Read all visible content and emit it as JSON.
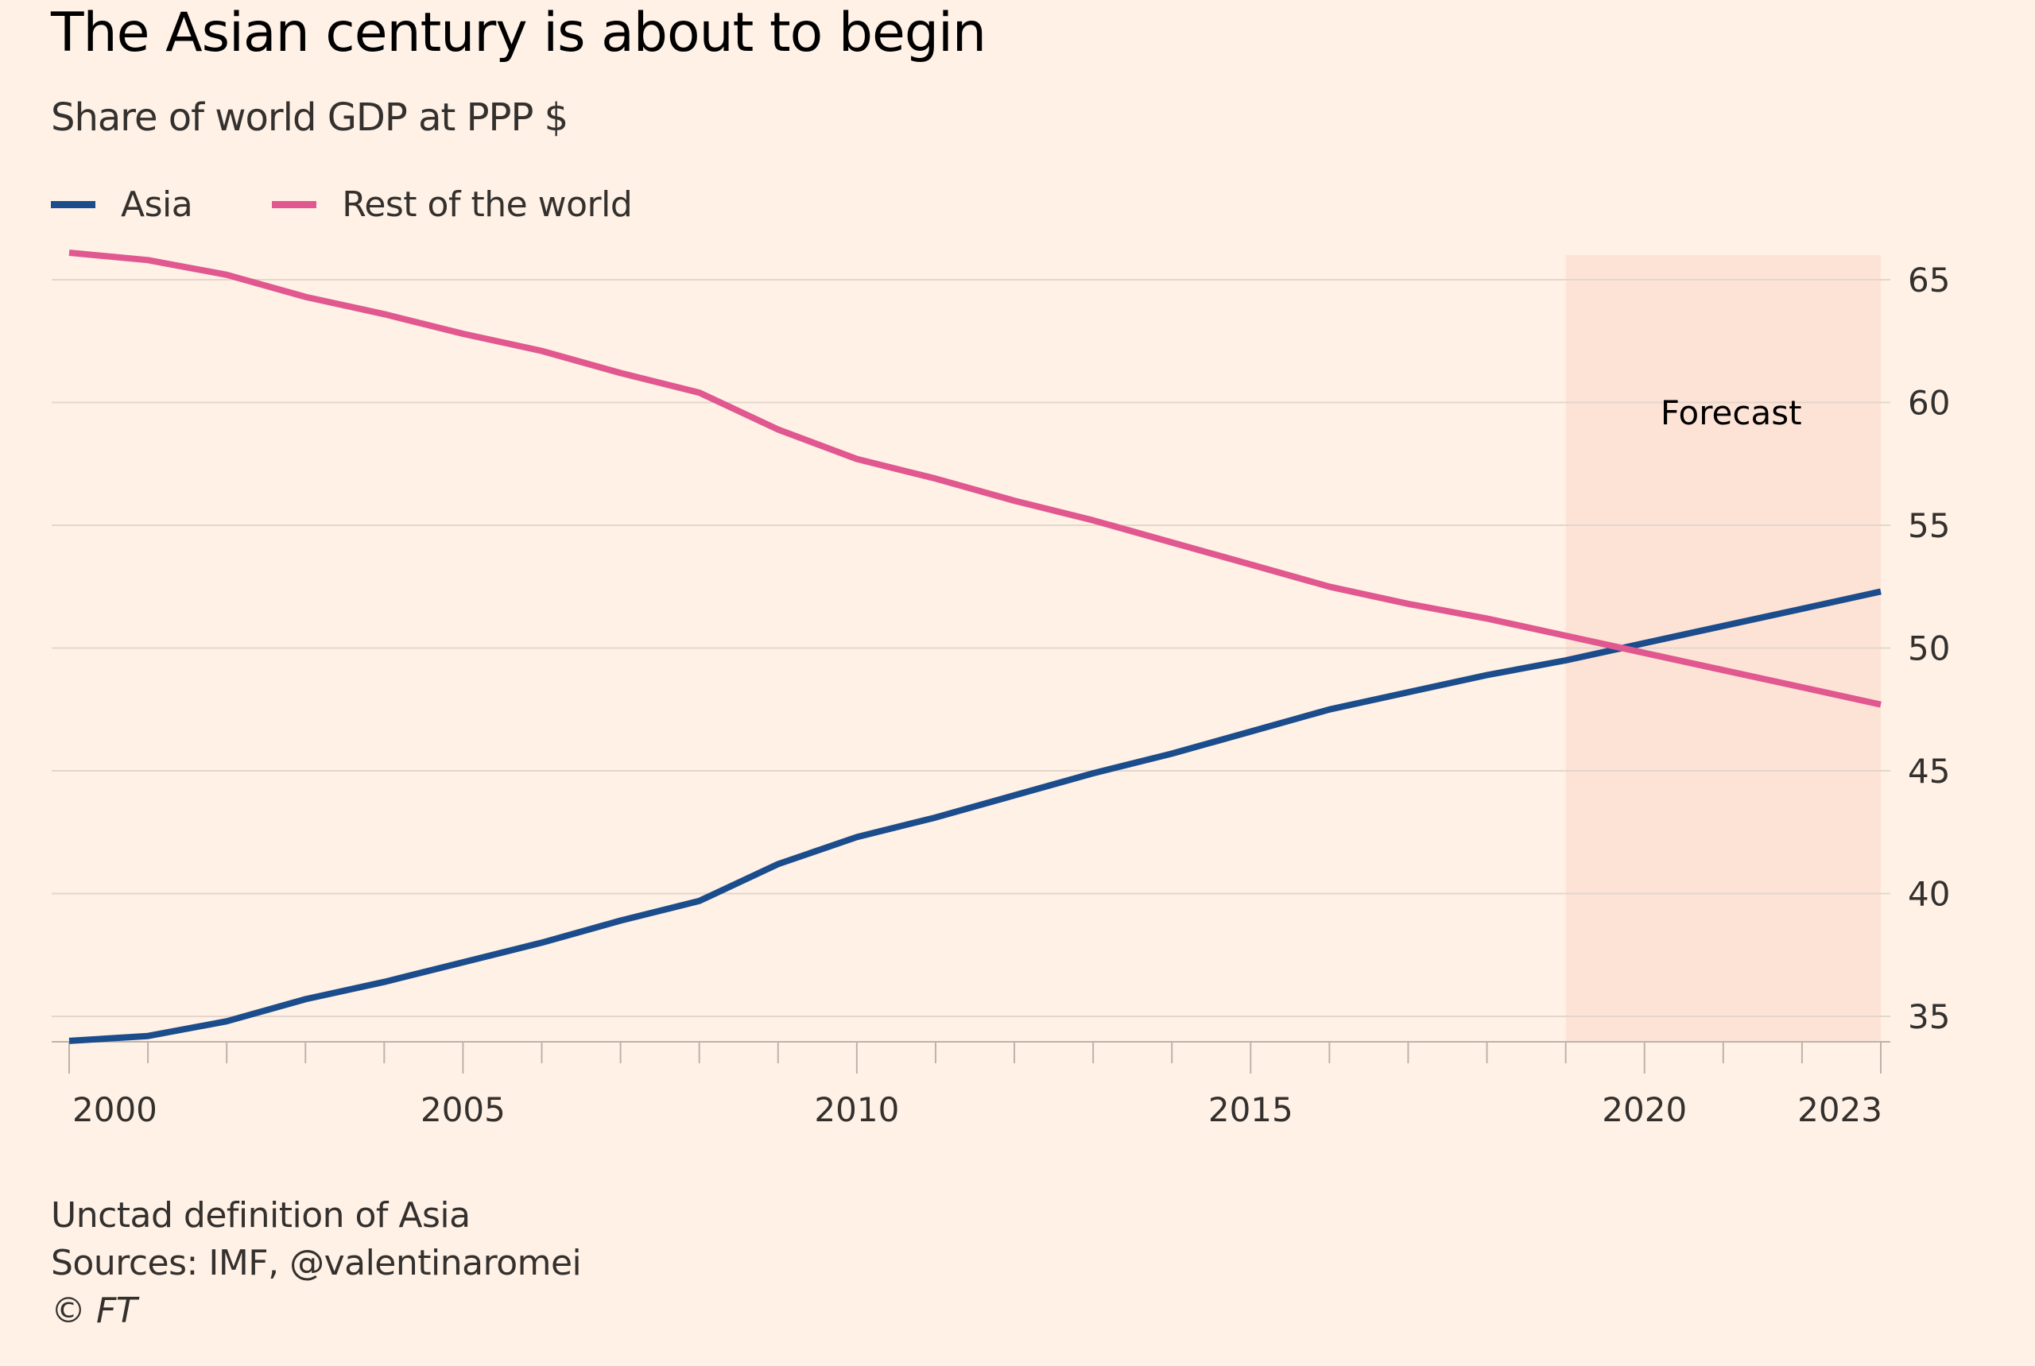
{
  "title": "The Asian century is about to begin",
  "subtitle": "Share of world GDP at PPP $",
  "legend": [
    {
      "label": "Asia",
      "color": "#1B4C8C"
    },
    {
      "label": "Rest of the world",
      "color": "#E0588F"
    }
  ],
  "annotation": {
    "label": "Forecast"
  },
  "footer": {
    "note": "Unctad definition of Asia",
    "sources": "Sources: IMF, @valentinaromei",
    "copyright": "© FT"
  },
  "colors": {
    "background": "#FFF1E5",
    "forecast_band": "#FDE3D6",
    "gridline": "#E3D6CC",
    "axis": "#BDB3AA",
    "text": "#33302E"
  },
  "chart_data": {
    "type": "line",
    "title": "The Asian century is about to begin",
    "subtitle": "Share of world GDP at PPP $",
    "xlabel": "",
    "ylabel": "",
    "x": [
      2000,
      2001,
      2002,
      2003,
      2004,
      2005,
      2006,
      2007,
      2008,
      2009,
      2010,
      2011,
      2012,
      2013,
      2014,
      2015,
      2016,
      2017,
      2018,
      2019,
      2020,
      2021,
      2022,
      2023
    ],
    "series": [
      {
        "name": "Asia",
        "color": "#1B4C8C",
        "values": [
          34.0,
          34.2,
          34.8,
          35.7,
          36.4,
          37.2,
          38.0,
          38.9,
          39.7,
          41.2,
          42.3,
          43.1,
          44.0,
          44.9,
          45.7,
          46.6,
          47.5,
          48.2,
          48.9,
          49.5,
          50.2,
          50.9,
          51.6,
          52.3
        ]
      },
      {
        "name": "Rest of the world",
        "color": "#E0588F",
        "values": [
          66.1,
          65.8,
          65.2,
          64.3,
          63.6,
          62.8,
          62.1,
          61.2,
          60.4,
          58.9,
          57.7,
          56.9,
          56.0,
          55.2,
          54.3,
          53.4,
          52.5,
          51.8,
          51.2,
          50.5,
          49.8,
          49.1,
          48.4,
          47.7
        ]
      }
    ],
    "xlim": [
      2000,
      2023
    ],
    "ylim": [
      34,
      66
    ],
    "yticks": [
      35,
      40,
      45,
      50,
      55,
      60,
      65
    ],
    "xtick_labels": [
      {
        "year": 2000,
        "label": "2000"
      },
      {
        "year": 2005,
        "label": "2005"
      },
      {
        "year": 2010,
        "label": "2010"
      },
      {
        "year": 2015,
        "label": "2015"
      },
      {
        "year": 2020,
        "label": "2020"
      },
      {
        "year": 2023,
        "label": "2023"
      }
    ],
    "minor_xticks_every_year": true,
    "yaxis_side": "right",
    "grid": true,
    "legend_position": "top-left",
    "shaded_region": {
      "label": "Forecast",
      "x_start": 2019,
      "x_end": 2023
    },
    "annotations": [
      {
        "text": "Forecast",
        "x": 2021.1,
        "y": 59.6
      }
    ]
  }
}
